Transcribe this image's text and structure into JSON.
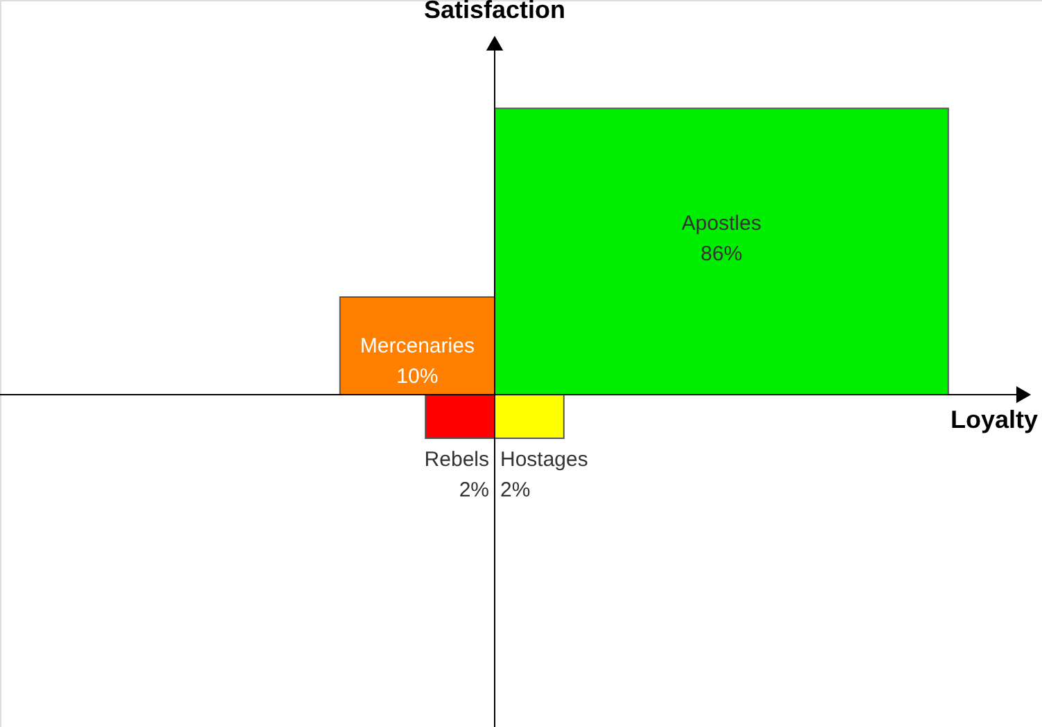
{
  "chart_data": {
    "type": "other",
    "xlabel": "Loyalty",
    "ylabel": "Satisfaction",
    "categories": [
      "Apostles",
      "Mercenaries",
      "Hostages",
      "Rebels"
    ],
    "values": [
      86,
      10,
      2,
      2
    ],
    "value_labels": [
      "86%",
      "10%",
      "2%",
      "2%"
    ],
    "colors": [
      "#00ee00",
      "#ff8000",
      "#ffff00",
      "#ff0000"
    ]
  }
}
